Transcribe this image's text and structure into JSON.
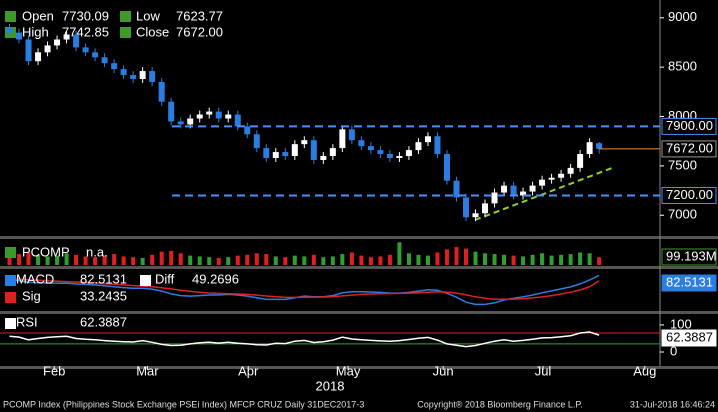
{
  "chart_data": [
    {
      "type": "candlestick",
      "open": [
        8900,
        8850,
        8780,
        8560,
        8650,
        8720,
        8780,
        8830,
        8700,
        8650,
        8600,
        8540,
        8480,
        8420,
        8380,
        8460,
        8350,
        8150,
        7950,
        7920,
        7980,
        8020,
        8050,
        7980,
        8020,
        7900,
        7820,
        7680,
        7580,
        7640,
        7600,
        7720,
        7760,
        7560,
        7600,
        7680,
        7870,
        7760,
        7700,
        7660,
        7620,
        7580,
        7600,
        7660,
        7740,
        7800,
        7620,
        7350,
        7180,
        6980,
        7020,
        7120,
        7230,
        7300,
        7200,
        7240,
        7300,
        7360,
        7380,
        7420,
        7480,
        7620,
        7730.09
      ],
      "high": [
        8940,
        8890,
        8820,
        8690,
        8760,
        8820,
        8870,
        8870,
        8740,
        8690,
        8640,
        8580,
        8520,
        8460,
        8500,
        8500,
        8390,
        8190,
        7990,
        8020,
        8060,
        8090,
        8090,
        8060,
        8060,
        7940,
        7860,
        7720,
        7680,
        7680,
        7760,
        7800,
        7800,
        7640,
        7720,
        7910,
        7910,
        7800,
        7740,
        7700,
        7660,
        7640,
        7700,
        7780,
        7840,
        7840,
        7660,
        7390,
        7220,
        7060,
        7160,
        7270,
        7340,
        7340,
        7280,
        7340,
        7400,
        7420,
        7460,
        7520,
        7660,
        7780,
        7742.85
      ],
      "low": [
        8810,
        8740,
        8520,
        8520,
        8610,
        8680,
        8740,
        8660,
        8610,
        8560,
        8500,
        8440,
        8380,
        8340,
        8340,
        8310,
        8110,
        7910,
        7880,
        7880,
        7940,
        7980,
        7940,
        7940,
        7860,
        7780,
        7640,
        7540,
        7540,
        7560,
        7560,
        7680,
        7520,
        7520,
        7560,
        7640,
        7720,
        7660,
        7620,
        7580,
        7540,
        7540,
        7560,
        7620,
        7700,
        7580,
        7310,
        7140,
        6940,
        6940,
        6980,
        7080,
        7190,
        7160,
        7160,
        7200,
        7260,
        7320,
        7340,
        7380,
        7440,
        7580,
        7623.77
      ],
      "close": [
        8850,
        8780,
        8560,
        8650,
        8720,
        8780,
        8830,
        8700,
        8650,
        8600,
        8540,
        8480,
        8420,
        8380,
        8460,
        8350,
        8150,
        7950,
        7920,
        7980,
        8020,
        8050,
        7980,
        8020,
        7900,
        7820,
        7680,
        7580,
        7640,
        7600,
        7720,
        7760,
        7560,
        7600,
        7680,
        7870,
        7760,
        7700,
        7660,
        7620,
        7580,
        7600,
        7660,
        7740,
        7800,
        7620,
        7350,
        7180,
        6980,
        7020,
        7120,
        7230,
        7300,
        7200,
        7240,
        7300,
        7360,
        7380,
        7420,
        7480,
        7620,
        7740,
        7672
      ],
      "close_label": "7672.00",
      "legend": {
        "open": "Open",
        "high": "High",
        "low": "Low",
        "close": "Close"
      },
      "up_color": "#ffffff",
      "down_color": "#2a7de1",
      "ylim": [
        6800,
        9180
      ],
      "yticks": [
        7000,
        7500,
        8000,
        8500,
        9000
      ],
      "xlim": [
        -1,
        68.4
      ],
      "xticks": [
        {
          "value": 4.7,
          "label": "Feb"
        },
        {
          "value": 14.5,
          "label": "Mar"
        },
        {
          "value": 25.1,
          "label": "Apr"
        },
        {
          "value": 35.6,
          "label": "May"
        },
        {
          "value": 45.6,
          "label": "Jun"
        },
        {
          "value": 56.1,
          "label": "Jul"
        },
        {
          "value": 66.8,
          "label": "Aug"
        }
      ],
      "x_title": "2018",
      "ref_lines": [
        {
          "value": 7900,
          "label": "7900.00"
        },
        {
          "value": 7200,
          "label": "7200.00"
        }
      ],
      "ref_color": "#4a90ff",
      "last_color": "#f08a30"
    },
    {
      "type": "bar",
      "series": [
        {
          "name": "PCOMP",
          "status": "n.a.",
          "values": [
            120,
            140,
            160,
            130,
            110,
            120,
            150,
            130,
            110,
            100,
            120,
            140,
            110,
            100,
            90,
            130,
            170,
            180,
            150,
            120,
            110,
            100,
            90,
            100,
            120,
            130,
            150,
            140,
            110,
            100,
            120,
            110,
            130,
            100,
            110,
            140,
            160,
            120,
            100,
            110,
            130,
            290,
            150,
            130,
            120,
            160,
            200,
            230,
            210,
            170,
            150,
            140,
            130,
            120,
            110,
            130,
            150,
            120,
            130,
            140,
            160,
            150,
            99.193
          ]
        }
      ],
      "value_label": "99.193M",
      "up_color": "#2fa02f",
      "down_color": "#e02020",
      "ylim": [
        0,
        320
      ]
    },
    {
      "type": "line",
      "series": [
        {
          "name": "MACD",
          "color": "#2a7de1",
          "values": [
            40,
            35,
            20,
            15,
            12,
            10,
            10,
            5,
            0,
            -5,
            -12,
            -20,
            -28,
            -35,
            -35,
            -42,
            -60,
            -85,
            -100,
            -105,
            -100,
            -95,
            -95,
            -90,
            -95,
            -105,
            -120,
            -135,
            -135,
            -135,
            -120,
            -105,
            -110,
            -110,
            -100,
            -75,
            -65,
            -65,
            -68,
            -72,
            -78,
            -78,
            -72,
            -60,
            -48,
            -52,
            -80,
            -115,
            -160,
            -180,
            -180,
            -165,
            -140,
            -125,
            -112,
            -95,
            -75,
            -58,
            -40,
            -22,
            5,
            40,
            82.5131
          ]
        },
        {
          "name": "Sig",
          "color": "#e02020",
          "values": [
            50,
            47,
            42,
            37,
            33,
            29,
            26,
            22,
            18,
            13,
            8,
            2,
            -4,
            -10,
            -15,
            -21,
            -29,
            -40,
            -52,
            -63,
            -71,
            -77,
            -81,
            -83,
            -86,
            -90,
            -96,
            -104,
            -111,
            -116,
            -117,
            -115,
            -114,
            -113,
            -110,
            -103,
            -96,
            -90,
            -86,
            -83,
            -82,
            -81,
            -79,
            -75,
            -70,
            -66,
            -69,
            -78,
            -94,
            -111,
            -125,
            -133,
            -134,
            -132,
            -128,
            -121,
            -112,
            -100,
            -86,
            -70,
            -50,
            -20,
            33.2435
          ]
        }
      ],
      "diff_name": "Diff",
      "diff": 49.2696,
      "diff_color": "#ffffff",
      "ylim": [
        -230,
        130
      ]
    },
    {
      "type": "line",
      "series": [
        {
          "name": "RSI",
          "color": "#ffffff",
          "values": [
            58,
            55,
            45,
            50,
            54,
            56,
            58,
            50,
            47,
            45,
            42,
            40,
            38,
            37,
            42,
            36,
            28,
            24,
            25,
            30,
            34,
            36,
            33,
            36,
            32,
            30,
            27,
            26,
            32,
            31,
            40,
            43,
            35,
            38,
            44,
            55,
            48,
            45,
            43,
            41,
            40,
            42,
            46,
            51,
            54,
            44,
            30,
            25,
            20,
            24,
            32,
            40,
            45,
            40,
            43,
            47,
            52,
            53,
            56,
            60,
            70,
            74,
            62.3887
          ]
        }
      ],
      "ylim": [
        -48,
        144
      ],
      "yticks": [
        0,
        100
      ],
      "levels": [
        {
          "value": 70,
          "color": "#e02020"
        },
        {
          "value": 30,
          "color": "#2fa02f"
        }
      ]
    }
  ],
  "footer": {
    "left": "PCOMP Index (Philippines Stock Exchange PSEi Index) MFCP CRUZ  Daily 31DEC2017-3",
    "center": "Copyright® 2018 Bloomberg Finance L.P.",
    "right": "31-Jul-2018 16:46:24"
  }
}
